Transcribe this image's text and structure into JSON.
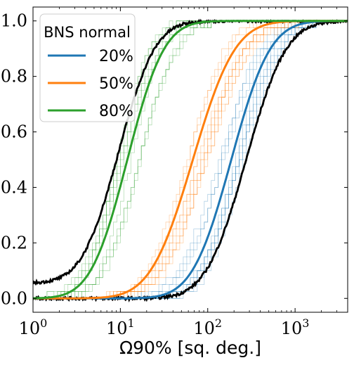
{
  "chart_data": {
    "type": "line",
    "title": "",
    "xlabel": "Ω90% [sq. deg.]",
    "ylabel": "",
    "x_scale": "log",
    "xlim": [
      1,
      4000
    ],
    "ylim": [
      -0.05,
      1.05
    ],
    "x_ticks": [
      {
        "value": 1,
        "base": "10",
        "exp": "0"
      },
      {
        "value": 10,
        "base": "10",
        "exp": "1"
      },
      {
        "value": 100,
        "base": "10",
        "exp": "2"
      },
      {
        "value": 1000,
        "base": "10",
        "exp": "3"
      }
    ],
    "y_ticks": [
      "0.0",
      "0.2",
      "0.4",
      "0.6",
      "0.8",
      "1.0"
    ],
    "legend": {
      "title": "BNS normal",
      "position": "top-left",
      "entries": [
        {
          "label": "20%",
          "color": "#1f77b4"
        },
        {
          "label": "50%",
          "color": "#ff7f0e"
        },
        {
          "label": "80%",
          "color": "#2ca02c"
        }
      ]
    },
    "series": [
      {
        "name": "20%",
        "color": "#1f77b4",
        "median_log10_deg2": 2.27,
        "width": 0.35
      },
      {
        "name": "50%",
        "color": "#ff7f0e",
        "median_log10_deg2": 1.83,
        "width": 0.38
      },
      {
        "name": "80%",
        "color": "#2ca02c",
        "median_log10_deg2": 1.08,
        "width": 0.33
      }
    ],
    "envelope_color": "#000000",
    "lower_envelope_median_log10_deg2": 2.44,
    "upper_envelope_median_log10_deg2": 0.98
  }
}
